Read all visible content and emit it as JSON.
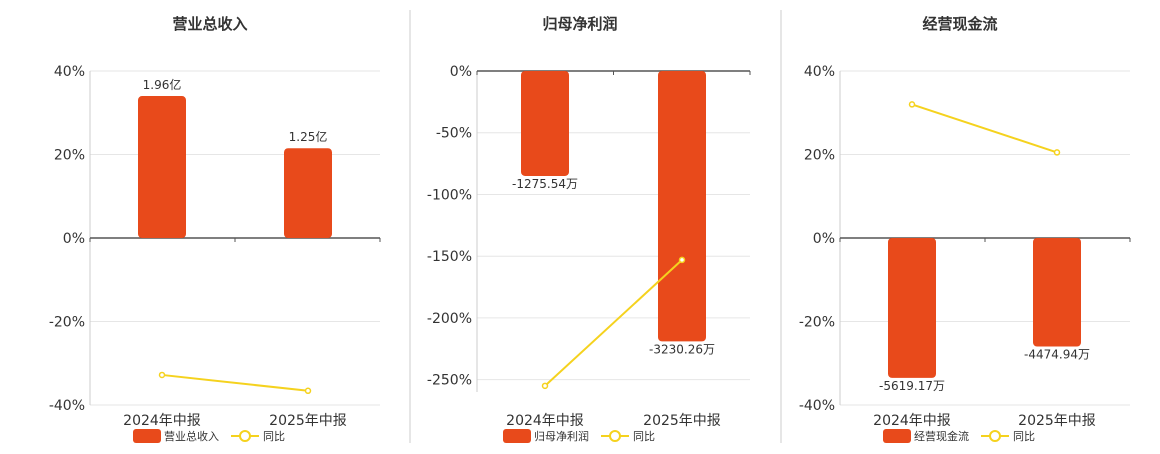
{
  "colors": {
    "bar": "#e84a1b",
    "line": "#f5d21e",
    "grid": "#e6e6e6",
    "axis": "#555555",
    "divider": "#cccccc",
    "text": "#333333"
  },
  "chart_data": [
    {
      "type": "bar",
      "title": "营业总收入",
      "categories": [
        "2024年中报",
        "2025年中报"
      ],
      "series": [
        {
          "name": "营业总收入",
          "type": "bar",
          "values": [
            34,
            21.5
          ],
          "labels": [
            "1.96亿",
            "1.25亿"
          ]
        },
        {
          "name": "同比",
          "type": "line",
          "values": [
            -32.8,
            -36.6
          ]
        }
      ],
      "ylim": [
        -40,
        40
      ],
      "yticks": [
        -40,
        -20,
        0,
        20,
        40
      ],
      "tick_suffix": "%",
      "grid": true,
      "legend": "bottom"
    },
    {
      "type": "bar",
      "title": "归母净利润",
      "categories": [
        "2024年中报",
        "2025年中报"
      ],
      "series": [
        {
          "name": "归母净利润",
          "type": "bar",
          "values": [
            -85,
            -219
          ],
          "labels": [
            "-1275.54万",
            "-3230.26万"
          ]
        },
        {
          "name": "同比",
          "type": "line",
          "values": [
            -255,
            -153
          ]
        }
      ],
      "ylim": [
        -260,
        0
      ],
      "yticks": [
        -250,
        -200,
        -150,
        -100,
        -50,
        0
      ],
      "tick_suffix": "%",
      "grid": true,
      "legend": "bottom"
    },
    {
      "type": "bar",
      "title": "经营现金流",
      "categories": [
        "2024年中报",
        "2025年中报"
      ],
      "series": [
        {
          "name": "经营现金流",
          "type": "bar",
          "values": [
            -33.5,
            -26
          ],
          "labels": [
            "-5619.17万",
            "-4474.94万"
          ]
        },
        {
          "name": "同比",
          "type": "line",
          "values": [
            32,
            20.5
          ]
        }
      ],
      "ylim": [
        -40,
        40
      ],
      "yticks": [
        -40,
        -20,
        0,
        20,
        40
      ],
      "tick_suffix": "%",
      "grid": true,
      "legend": "bottom"
    }
  ]
}
